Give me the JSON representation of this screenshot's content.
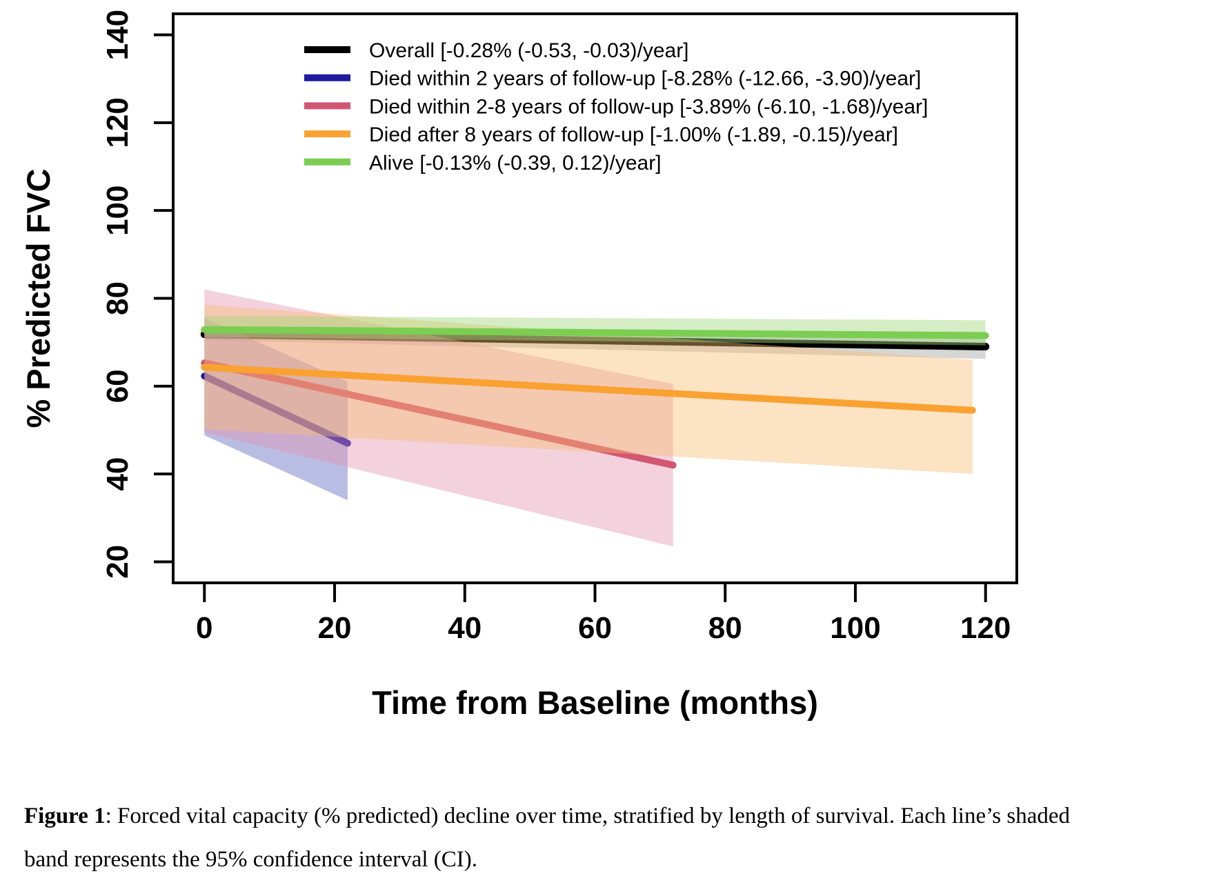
{
  "caption": {
    "prefix": "Figure 1",
    "line1_rest": ": Forced vital capacity (% predicted) decline over time, stratified by length of survival. Each line’s shaded",
    "line2": "band represents the 95% confidence interval (CI)."
  },
  "chart_data": {
    "type": "line",
    "title": "",
    "xlabel": "Time from Baseline (months)",
    "ylabel": "% Predicted FVC",
    "x_ticks": [
      0,
      20,
      40,
      60,
      80,
      100,
      120
    ],
    "y_ticks": [
      20,
      40,
      60,
      80,
      100,
      120,
      140
    ],
    "xlim": [
      -4.8,
      124.8
    ],
    "ylim": [
      15.2,
      144.8
    ],
    "grid": false,
    "legend_position": "top-left-inside",
    "axis_color": "#000000",
    "series": [
      {
        "key": "overall",
        "label": "Overall [-0.28% (-0.53, -0.03)/year]",
        "color": "#000000",
        "band_color": "#a5a5a5",
        "band_opacity": 0.45,
        "lw": 11,
        "line": [
          [
            0,
            71.8
          ],
          [
            120,
            69.0
          ]
        ],
        "band_upper": [
          [
            0,
            73.2
          ],
          [
            120,
            72.4
          ]
        ],
        "band_lower": [
          [
            0,
            70.5
          ],
          [
            120,
            66.2
          ]
        ]
      },
      {
        "key": "died-within-2y",
        "label": "Died within 2 years of follow-up [-8.28% (-12.66, -3.90)/year]",
        "color": "#1e1b9e",
        "band_color": "#5b61bd",
        "band_opacity": 0.42,
        "lw": 10,
        "line": [
          [
            0,
            62.3
          ],
          [
            22,
            47.0
          ]
        ],
        "band_upper": [
          [
            0,
            75.5
          ],
          [
            22,
            61.0
          ]
        ],
        "band_lower": [
          [
            0,
            48.8
          ],
          [
            22,
            34.0
          ]
        ]
      },
      {
        "key": "died-2-8y",
        "label": "Died within 2-8 years of follow-up [-3.89% (-6.10, -1.68)/year]",
        "color": "#d25672",
        "band_color": "#e292ae",
        "band_opacity": 0.42,
        "lw": 10,
        "line": [
          [
            0,
            65.3
          ],
          [
            72,
            42.0
          ]
        ],
        "band_upper": [
          [
            0,
            82.0
          ],
          [
            72,
            60.5
          ]
        ],
        "band_lower": [
          [
            0,
            49.5
          ],
          [
            72,
            23.5
          ]
        ]
      },
      {
        "key": "died-after-8y",
        "label": "Died after 8 years of follow-up [-1.00% (-1.89, -0.15)/year]",
        "color": "#f9a232",
        "band_color": "#f7bc72",
        "band_opacity": 0.42,
        "lw": 10,
        "line": [
          [
            0,
            64.3
          ],
          [
            118,
            54.5
          ]
        ],
        "band_upper": [
          [
            0,
            78.5
          ],
          [
            118,
            66.0
          ]
        ],
        "band_lower": [
          [
            0,
            50.2
          ],
          [
            118,
            40.0
          ]
        ]
      },
      {
        "key": "alive",
        "label": "Alive [-0.13% (-0.39, 0.12)/year]",
        "color": "#7bce51",
        "band_color": "#a2d67c",
        "band_opacity": 0.45,
        "lw": 10,
        "line": [
          [
            0,
            72.9
          ],
          [
            120,
            71.5
          ]
        ],
        "band_upper": [
          [
            0,
            76.0
          ],
          [
            120,
            75.0
          ]
        ],
        "band_lower": [
          [
            0,
            71.2
          ],
          [
            120,
            69.3
          ]
        ]
      }
    ]
  }
}
